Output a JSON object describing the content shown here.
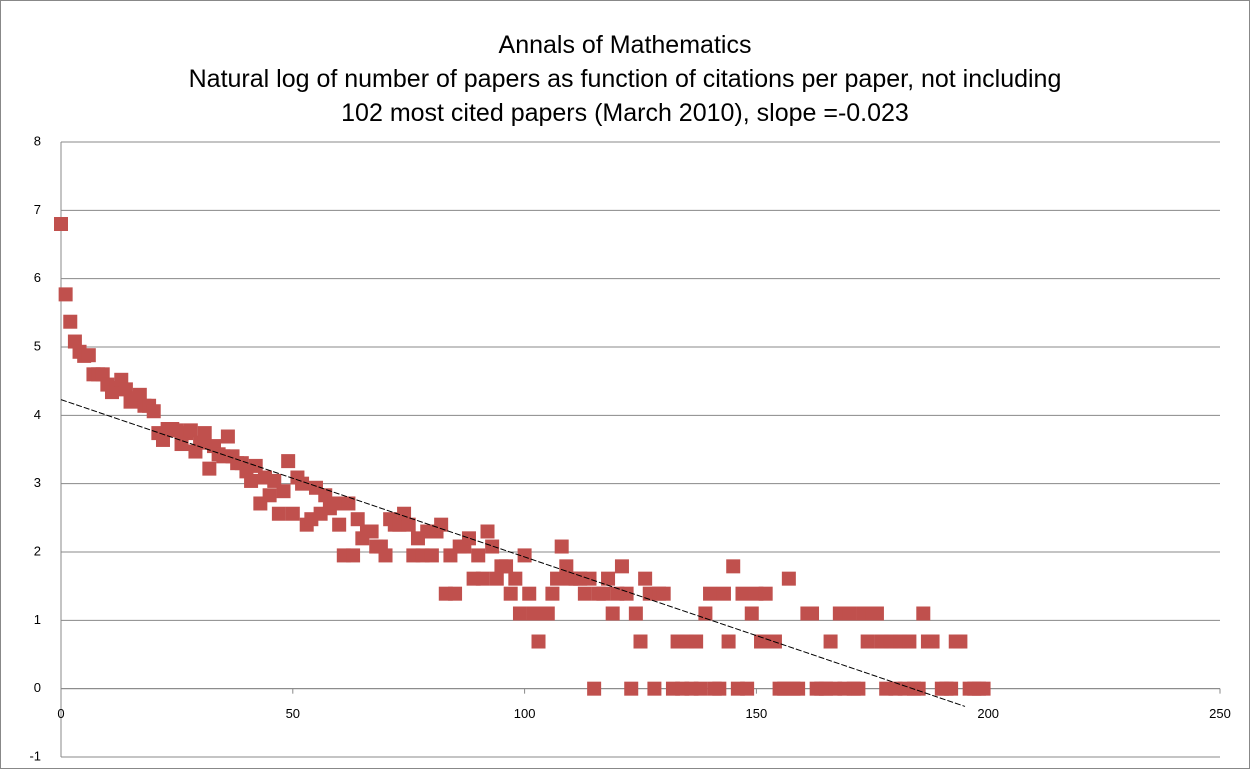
{
  "chart_data": {
    "type": "scatter",
    "title": "Annals of Mathematics",
    "subtitle": "Natural log of number of papers as function of citations per paper, not including 102 most cited papers (March 2010), slope =-0.023",
    "color": "#c0504d",
    "x": [
      0,
      1,
      2,
      3,
      4,
      5,
      6,
      7,
      8,
      9,
      10,
      11,
      12,
      13,
      14,
      15,
      16,
      17,
      18,
      19,
      20,
      21,
      22,
      23,
      24,
      25,
      26,
      27,
      28,
      29,
      30,
      31,
      32,
      33,
      34,
      35,
      36,
      37,
      38,
      39,
      40,
      41,
      42,
      43,
      44,
      45,
      46,
      47,
      48,
      49,
      50,
      51,
      52,
      53,
      54,
      55,
      56,
      57,
      58,
      59,
      60,
      61,
      62,
      63,
      64,
      65,
      66,
      67,
      68,
      69,
      70,
      71,
      72,
      73,
      74,
      75,
      76,
      77,
      78,
      79,
      80,
      81,
      82,
      83,
      84,
      85,
      86,
      87,
      88,
      89,
      90,
      91,
      92,
      93,
      94,
      95,
      96,
      97,
      98,
      99,
      100,
      101,
      102,
      103,
      104,
      105,
      106,
      107,
      108,
      109,
      110,
      111,
      112,
      113,
      114,
      115,
      116,
      117,
      118,
      119,
      120,
      121,
      122,
      123,
      124,
      125,
      126,
      127,
      128,
      129,
      130,
      132,
      133,
      134,
      135,
      136,
      137,
      138,
      139,
      140,
      141,
      142,
      143,
      144,
      145,
      146,
      147,
      148,
      149,
      150,
      151,
      152,
      154,
      155,
      156,
      157,
      158,
      159,
      161,
      162,
      163,
      164,
      165,
      166,
      167,
      168,
      169,
      170,
      171,
      172,
      173,
      174,
      175,
      176,
      177,
      178,
      179,
      180,
      181,
      182,
      183,
      184,
      185,
      186,
      187,
      188,
      190,
      191,
      192,
      193,
      194,
      196,
      197,
      198,
      199
    ],
    "values": [
      6.8,
      5.77,
      5.37,
      5.08,
      4.93,
      4.87,
      4.88,
      4.6,
      4.6,
      4.6,
      4.45,
      4.34,
      4.4,
      4.52,
      4.38,
      4.2,
      4.25,
      4.3,
      4.14,
      4.14,
      4.06,
      3.74,
      3.64,
      3.8,
      3.8,
      3.78,
      3.58,
      3.74,
      3.78,
      3.47,
      3.6,
      3.74,
      3.22,
      3.55,
      3.43,
      3.4,
      3.69,
      3.4,
      3.3,
      3.3,
      3.18,
      3.04,
      3.26,
      2.71,
      3.09,
      2.83,
      3.04,
      2.56,
      2.89,
      3.33,
      2.56,
      3.09,
      3.0,
      2.4,
      2.48,
      2.94,
      2.56,
      2.83,
      2.64,
      2.71,
      2.4,
      1.95,
      2.71,
      1.95,
      2.48,
      2.2,
      2.3,
      2.3,
      2.08,
      2.08,
      1.95,
      2.48,
      2.4,
      2.4,
      2.56,
      2.4,
      1.95,
      2.2,
      1.95,
      2.3,
      1.95,
      2.3,
      2.4,
      1.39,
      1.95,
      1.39,
      2.08,
      2.08,
      2.2,
      1.61,
      1.95,
      1.61,
      2.3,
      2.08,
      1.61,
      1.79,
      1.79,
      1.39,
      1.61,
      1.1,
      1.95,
      1.39,
      1.1,
      0.69,
      1.1,
      1.1,
      1.39,
      1.61,
      2.08,
      1.79,
      1.61,
      1.61,
      1.61,
      1.39,
      1.61,
      0,
      1.39,
      1.39,
      1.61,
      1.1,
      1.39,
      1.79,
      1.39,
      0,
      1.1,
      0.69,
      1.61,
      1.39,
      0,
      1.39,
      1.39,
      0,
      0.69,
      0,
      0.69,
      0,
      0.69,
      0,
      1.1,
      1.39,
      0,
      0,
      1.39,
      0.69,
      1.79,
      0,
      1.39,
      0,
      1.1,
      1.39,
      0.69,
      1.39,
      0.69,
      0,
      0,
      1.61,
      0,
      0,
      1.1,
      1.1,
      0,
      0,
      0,
      0.69,
      0,
      1.1,
      0,
      1.1,
      0,
      0,
      1.1,
      0.69,
      1.1,
      1.1,
      0.69,
      0,
      0.69,
      0,
      0.69,
      0,
      0.69,
      0,
      0,
      1.1,
      0.69,
      0.69,
      0,
      0,
      0,
      0.69,
      0.69,
      0,
      0,
      0,
      0
    ],
    "trendline": {
      "x": [
        0,
        195
      ],
      "values": [
        4.23,
        -0.26
      ]
    },
    "xlim": [
      0,
      250
    ],
    "xticks": [
      0,
      50,
      100,
      150,
      200,
      250
    ],
    "ylim": [
      -1,
      8
    ],
    "yticks": [
      -1,
      0,
      1,
      2,
      3,
      4,
      5,
      6,
      7,
      8
    ],
    "grid": true
  }
}
